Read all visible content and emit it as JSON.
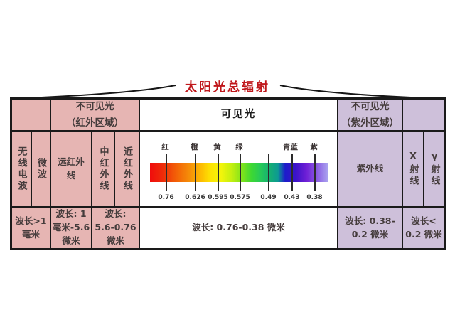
{
  "title": {
    "text": "太阳光总辐射"
  },
  "colors": {
    "title_red": "#c0181c",
    "infrared_bg": "#e6b5b3",
    "uv_bg": "#cec0da",
    "grid_line": "#1a1a1a",
    "cell_text": "#453c3c"
  },
  "header_row": {
    "blank_left": "",
    "invisible_infrared": "不可见光\n（红外区域）",
    "visible": "可见光",
    "invisible_uv": "不可见光\n（紫外区域）",
    "blank_right": ""
  },
  "band_row": {
    "radio_waves": "无线电波",
    "microwave": "微波",
    "far_infrared": "远红外线",
    "mid_infrared": "中红外线",
    "near_infrared": "近红外线",
    "ultraviolet": "紫外线",
    "x_ray": "X射线",
    "gamma_ray": "γ射线"
  },
  "wavelength_row": {
    "radio": "波长>1\n毫米",
    "far_infrared": "波长: 1\n毫米-5.6\n微米",
    "mid_near_infrared": "波长:\n5.6-0.76\n微米",
    "visible": "波长: 0.76-0.38 微米",
    "ultraviolet": "波长: 0.38-\n0.2 微米",
    "xray_gamma": "波长<\n0.2 微米"
  },
  "spectrum": {
    "unit": "微米",
    "color_labels": [
      {
        "text": "红",
        "pct": 8.8
      },
      {
        "text": "橙",
        "pct": 25.2
      },
      {
        "text": "黄",
        "pct": 38.0
      },
      {
        "text": "绿",
        "pct": 50.4
      },
      {
        "text": "青蓝",
        "pct": 79.2
      },
      {
        "text": "紫",
        "pct": 92.4
      }
    ],
    "ticks": [
      {
        "value": "0.76",
        "pct": 9.2
      },
      {
        "value": "0.626",
        "pct": 25.6
      },
      {
        "value": "0.595",
        "pct": 38.4
      },
      {
        "value": "0.575",
        "pct": 50.8
      },
      {
        "value": "0.49",
        "pct": 66.8
      },
      {
        "value": "0.43",
        "pct": 80.0
      },
      {
        "value": "0.38",
        "pct": 92.8
      }
    ],
    "bar_gradient": "linear-gradient(90deg,#f00c0c 0%,#ee2b09 7%,#f36207 15%,#f58d08 22%,#fdb602 28%,#fde303 34%,#f3f50b 40%,#c3ef10 46%,#7fe31c 52%,#3ed832 57%,#27ca57 62%,#13ac77 68%,#0d9a93 72%,#1d1dcb 76%,#3b13c9 82%,#6f1fd6 88%,#8b5ce3 94%,#aaa2ef 100%)"
  }
}
